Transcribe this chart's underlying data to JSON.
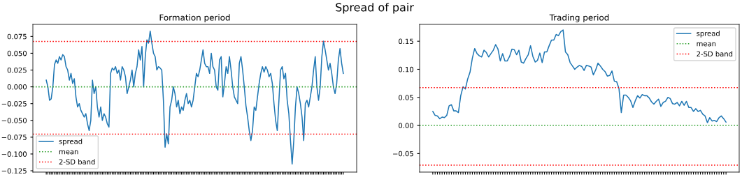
{
  "chart_data": [
    {
      "type": "line",
      "title": "Spread of pair",
      "subtitle": "Formation period",
      "tick_labels": "y",
      "legend": "lower left",
      "grid": false,
      "line_style": "solid",
      "marker": "none",
      "ylim": [
        -0.127,
        0.093
      ],
      "yticks": [
        {
          "value": -0.125,
          "label": "−0.125"
        },
        {
          "value": -0.1,
          "label": "−0.100"
        },
        {
          "value": -0.075,
          "label": "−0.075"
        },
        {
          "value": -0.05,
          "label": "−0.050"
        },
        {
          "value": -0.025,
          "label": "−0.025"
        },
        {
          "value": 0,
          "label": "0.000"
        },
        {
          "value": 0.025,
          "label": "0.025"
        },
        {
          "value": 0.05,
          "label": "0.050"
        },
        {
          "value": 0.075,
          "label": "0.075"
        }
      ],
      "series": [
        {
          "name": "spread",
          "color": "#1f77b4",
          "values": [
            0.01,
            0.0,
            -0.02,
            -0.018,
            0.0,
            0.033,
            0.04,
            0.035,
            0.045,
            0.04,
            0.048,
            0.045,
            0.03,
            0.025,
            0.01,
            0.02,
            0.005,
            0.012,
            -0.015,
            -0.03,
            -0.025,
            -0.035,
            -0.04,
            -0.045,
            -0.04,
            -0.055,
            -0.065,
            -0.05,
            0.01,
            -0.01,
            0.0,
            -0.03,
            -0.045,
            -0.03,
            -0.05,
            -0.04,
            -0.045,
            -0.055,
            -0.06,
            0.02,
            0.028,
            0.025,
            0.03,
            0.02,
            0.025,
            0.01,
            0.03,
            0.025,
            0.015,
            -0.01,
            0.0,
            0.01,
            0.025,
            0.0,
            0.02,
            0.03,
            0.055,
            0.04,
            0.06,
            0.0,
            0.045,
            0.07,
            0.065,
            0.083,
            0.065,
            0.05,
            0.045,
            0.025,
            0.03,
            0.028,
            0.025,
            -0.02,
            -0.09,
            -0.07,
            -0.085,
            -0.03,
            -0.02,
            0.0,
            -0.01,
            -0.03,
            -0.02,
            -0.04,
            -0.03,
            -0.035,
            -0.02,
            -0.01,
            -0.025,
            -0.02,
            -0.03,
            -0.02,
            0.0,
            0.02,
            0.015,
            0.025,
            0.04,
            0.055,
            0.035,
            0.03,
            0.03,
            0.02,
            0.05,
            0.03,
            0.025,
            0.0,
            -0.005,
            0.04,
            0.045,
            -0.015,
            0.005,
            0.03,
            0.02,
            0.045,
            0.025,
            0.0,
            -0.015,
            -0.02,
            -0.025,
            0.035,
            0.045,
            0.025,
            0.0,
            -0.028,
            -0.045,
            -0.065,
            -0.08,
            -0.065,
            -0.03,
            -0.035,
            -0.015,
            0.005,
            0.02,
            0.03,
            0.022,
            0.03,
            0.025,
            0.015,
            0.02,
            0.005,
            -0.025,
            -0.05,
            -0.065,
            -0.02,
            0.025,
            0.03,
            0.012,
            0.02,
            -0.02,
            -0.04,
            -0.08,
            -0.115,
            -0.08,
            -0.03,
            0.0,
            -0.01,
            -0.025,
            -0.045,
            -0.08,
            -0.025,
            -0.02,
            -0.03,
            -0.015,
            0.0,
            0.025,
            0.045,
            0.0,
            -0.02,
            0.0,
            0.045,
            0.068,
            0.055,
            0.04,
            0.025,
            0.035,
            0.02,
            0.0,
            -0.01,
            0.005,
            0.04,
            0.057,
            0.035,
            0.02
          ]
        }
      ],
      "ref_lines": [
        {
          "axis": "y",
          "value": 0,
          "label": "mean",
          "color": "#2ca02c",
          "line_style": "dotted"
        },
        {
          "axis": "y",
          "value": 0.0675,
          "label": "2-SD band",
          "color": "#ff0000",
          "line_style": "dotted"
        },
        {
          "axis": "y",
          "value": -0.0705,
          "color": "#ff0000",
          "line_style": "dotted"
        }
      ],
      "categories": [
        null,
        null,
        null,
        null,
        null,
        null,
        null,
        null,
        null,
        null,
        null,
        null,
        null,
        null,
        null,
        null,
        null,
        null,
        null,
        null,
        null,
        null,
        null,
        null,
        null,
        null,
        null,
        null,
        null,
        null,
        null,
        null,
        null,
        null,
        null,
        null,
        null,
        null,
        null,
        null,
        null,
        null,
        null,
        null,
        null,
        null,
        null,
        null,
        null,
        null,
        null,
        null,
        null,
        null,
        null,
        null,
        null,
        null,
        null,
        null,
        null,
        null,
        null,
        null,
        null,
        null,
        null,
        null,
        null,
        null,
        null,
        null,
        null,
        null,
        null,
        null,
        null,
        null,
        null,
        null,
        null,
        null,
        null,
        null,
        null,
        null,
        null,
        null,
        null,
        null,
        null,
        null,
        null,
        null,
        null,
        null,
        null,
        null,
        null,
        null,
        null,
        null,
        null,
        null,
        null,
        null,
        null,
        null,
        null,
        null,
        null,
        null,
        null,
        null,
        null,
        null,
        null,
        null,
        null,
        null,
        null,
        null,
        null,
        null,
        null,
        null,
        null,
        null,
        null,
        null,
        null,
        null,
        null,
        null,
        null,
        null,
        null,
        null,
        null,
        null,
        null,
        null,
        null,
        null,
        null,
        null,
        null,
        null,
        null,
        null,
        null,
        null,
        null,
        null,
        null,
        null,
        null,
        null,
        null,
        null,
        null,
        null,
        null,
        null,
        null,
        null,
        null,
        null,
        null,
        null,
        null,
        null,
        null,
        null,
        null,
        null,
        null,
        null,
        null,
        null,
        null
      ]
    },
    {
      "type": "line",
      "subtitle": "Trading period",
      "tick_labels": "y",
      "legend": "upper right",
      "grid": false,
      "line_style": "solid",
      "marker": "none",
      "ylim": [
        -0.083,
        0.18
      ],
      "yticks": [
        {
          "value": -0.05,
          "label": "−0.05"
        },
        {
          "value": 0,
          "label": "0.00"
        },
        {
          "value": 0.05,
          "label": "0.05"
        },
        {
          "value": 0.1,
          "label": "0.10"
        },
        {
          "value": 0.15,
          "label": "0.15"
        }
      ],
      "series": [
        {
          "name": "spread",
          "color": "#1f77b4",
          "values": [
            0.025,
            0.018,
            0.017,
            0.012,
            0.015,
            0.014,
            0.018,
            0.035,
            0.037,
            0.026,
            0.026,
            0.023,
            0.053,
            0.069,
            0.065,
            0.083,
            0.095,
            0.12,
            0.137,
            0.128,
            0.124,
            0.122,
            0.134,
            0.13,
            0.122,
            0.128,
            0.134,
            0.144,
            0.136,
            0.115,
            0.128,
            0.115,
            0.115,
            0.123,
            0.136,
            0.135,
            0.126,
            0.134,
            0.113,
            0.111,
            0.119,
            0.126,
            0.142,
            0.123,
            0.113,
            0.116,
            0.129,
            0.112,
            0.131,
            0.131,
            0.142,
            0.152,
            0.152,
            0.162,
            0.16,
            0.167,
            0.17,
            0.131,
            0.126,
            0.112,
            0.106,
            0.1,
            0.104,
            0.107,
            0.105,
            0.098,
            0.107,
            0.106,
            0.104,
            0.09,
            0.099,
            0.111,
            0.106,
            0.1,
            0.096,
            0.088,
            0.089,
            0.097,
            0.079,
            0.078,
            0.066,
            0.023,
            0.054,
            0.054,
            0.05,
            0.044,
            0.032,
            0.044,
            0.053,
            0.049,
            0.055,
            0.053,
            0.053,
            0.049,
            0.042,
            0.038,
            0.043,
            0.047,
            0.034,
            0.041,
            0.043,
            0.05,
            0.048,
            0.039,
            0.038,
            0.041,
            0.035,
            0.043,
            0.036,
            0.043,
            0.032,
            0.032,
            0.025,
            0.03,
            0.025,
            0.027,
            0.02,
            0.017,
            0.005,
            0.014,
            0.008,
            0.009,
            0.007,
            0.014,
            0.017,
            0.012,
            0.006
          ]
        }
      ],
      "ref_lines": [
        {
          "axis": "y",
          "value": 0,
          "label": "mean",
          "color": "#2ca02c",
          "line_style": "dotted"
        },
        {
          "axis": "y",
          "value": 0.0675,
          "label": "2-SD band",
          "color": "#ff0000",
          "line_style": "dotted"
        },
        {
          "axis": "y",
          "value": -0.0705,
          "color": "#ff0000",
          "line_style": "dotted"
        }
      ],
      "categories": [
        null,
        null,
        null,
        null,
        null,
        null,
        null,
        null,
        null,
        null,
        null,
        null,
        null,
        null,
        null,
        null,
        null,
        null,
        null,
        null,
        null,
        null,
        null,
        null,
        null,
        null,
        null,
        null,
        null,
        null,
        null,
        null,
        null,
        null,
        null,
        null,
        null,
        null,
        null,
        null,
        null,
        null,
        null,
        null,
        null,
        null,
        null,
        null,
        null,
        null,
        null,
        null,
        null,
        null,
        null,
        null,
        null,
        null,
        null,
        null,
        null,
        null,
        null,
        null,
        null,
        null,
        null,
        null,
        null,
        null,
        null,
        null,
        null,
        null,
        null,
        null,
        null,
        null,
        null,
        null,
        null,
        null,
        null,
        null,
        null,
        null,
        null,
        null,
        null,
        null,
        null,
        null,
        null,
        null,
        null,
        null,
        null,
        null,
        null,
        null,
        null,
        null,
        null,
        null,
        null,
        null,
        null,
        null,
        null,
        null,
        null,
        null,
        null,
        null,
        null,
        null,
        null,
        null,
        null,
        null,
        null,
        null,
        null,
        null,
        null,
        null,
        null
      ]
    }
  ]
}
